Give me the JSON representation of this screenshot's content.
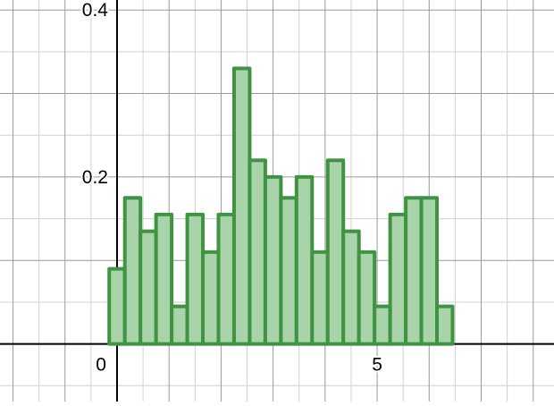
{
  "chart_data": {
    "type": "bar",
    "title": "",
    "xlabel": "",
    "ylabel": "",
    "grid": true,
    "bin_width": 0.3,
    "bin_starts": [
      -0.15,
      0.15,
      0.45,
      0.75,
      1.05,
      1.35,
      1.65,
      1.95,
      2.25,
      2.55,
      2.85,
      3.15,
      3.45,
      3.75,
      4.05,
      4.35,
      4.65,
      4.95,
      5.25,
      5.55,
      5.85,
      6.15
    ],
    "values": [
      0.09,
      0.175,
      0.135,
      0.155,
      0.045,
      0.155,
      0.11,
      0.155,
      0.33,
      0.22,
      0.2,
      0.175,
      0.2,
      0.11,
      0.22,
      0.135,
      0.11,
      0.045,
      0.155,
      0.175,
      0.175,
      0.045
    ],
    "xlim": [
      -2.25,
      8.4
    ],
    "ylim": [
      -0.069,
      0.412
    ],
    "x_tick_labels": [
      {
        "value": 0,
        "label": "0"
      },
      {
        "value": 5,
        "label": "5"
      }
    ],
    "y_tick_labels": [
      {
        "value": 0.2,
        "label": "0.2"
      },
      {
        "value": 0.4,
        "label": "0.4"
      }
    ],
    "colors": {
      "bar_fill": "#a9d4a9",
      "bar_stroke": "#3f9342",
      "axis": "#000000",
      "grid_major": "#9a9a9a",
      "grid_minor": "#d0d0d0",
      "tick_text": "#000000"
    }
  }
}
